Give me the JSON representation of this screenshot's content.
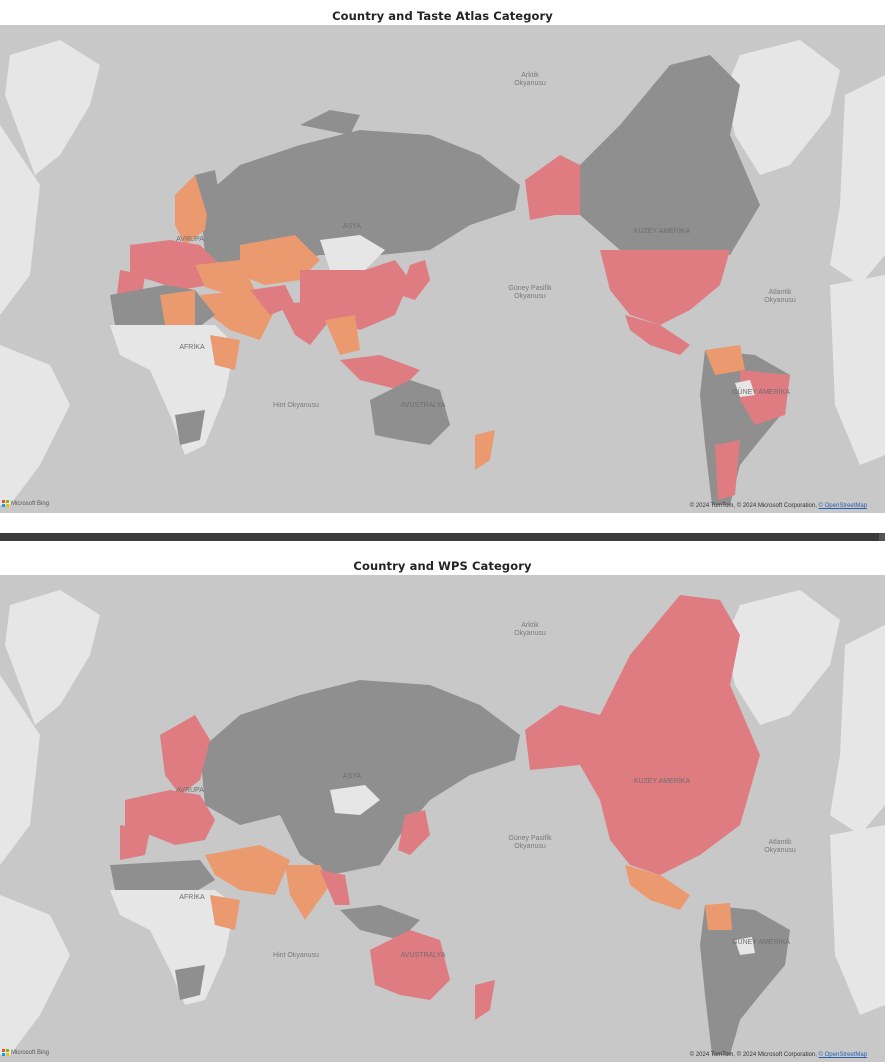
{
  "maps": [
    {
      "title": "Country and Taste Atlas Category",
      "labels": {
        "arctic": "Arktik\nOkyanusu",
        "asia": "ASYA",
        "europe": "AVRUPA",
        "africa": "AFRİKA",
        "indian": "Hint Okyanusu",
        "pacific": "Güney Pasifik\nOkyanusu",
        "australia": "AVUSTRALYA",
        "north_america": "KUZEY AMERİKA",
        "south_america": "GÜNEY AMERİKA",
        "atlantic": "Atlantik\nOkyanusu"
      },
      "attribution": "© 2024 TomTom, © 2024 Microsoft Corporation,",
      "attribution_link": "© OpenStreetMap",
      "logo_text": "Microsoft Bing"
    },
    {
      "title": "Country and WPS Category",
      "labels": {
        "arctic": "Arktik\nOkyanusu",
        "asia": "ASYA",
        "europe": "AVRUPA",
        "africa": "AFRİKA",
        "indian": "Hint Okyanusu",
        "pacific": "Güney Pasifik\nOkyanusu",
        "australia": "AVUSTRALYA",
        "north_america": "KUZEY AMERİKA",
        "south_america": "GÜNEY AMERİKA",
        "atlantic": "Atlantik\nOkyanusu"
      },
      "attribution": "© 2024 TomTom, © 2024 Microsoft Corporation,",
      "attribution_link": "© OpenStreetMap",
      "logo_text": "Microsoft Bing"
    }
  ],
  "colors": {
    "ocean": "#c8c8c8",
    "no_data_land": "#e6e6e6",
    "category_gray": "#8f8f8f",
    "category_red": "#de7c82",
    "category_orange": "#ea9a6e",
    "title_text": "#252423"
  },
  "icons": {
    "logo": "microsoft-bing-logo-icon"
  }
}
